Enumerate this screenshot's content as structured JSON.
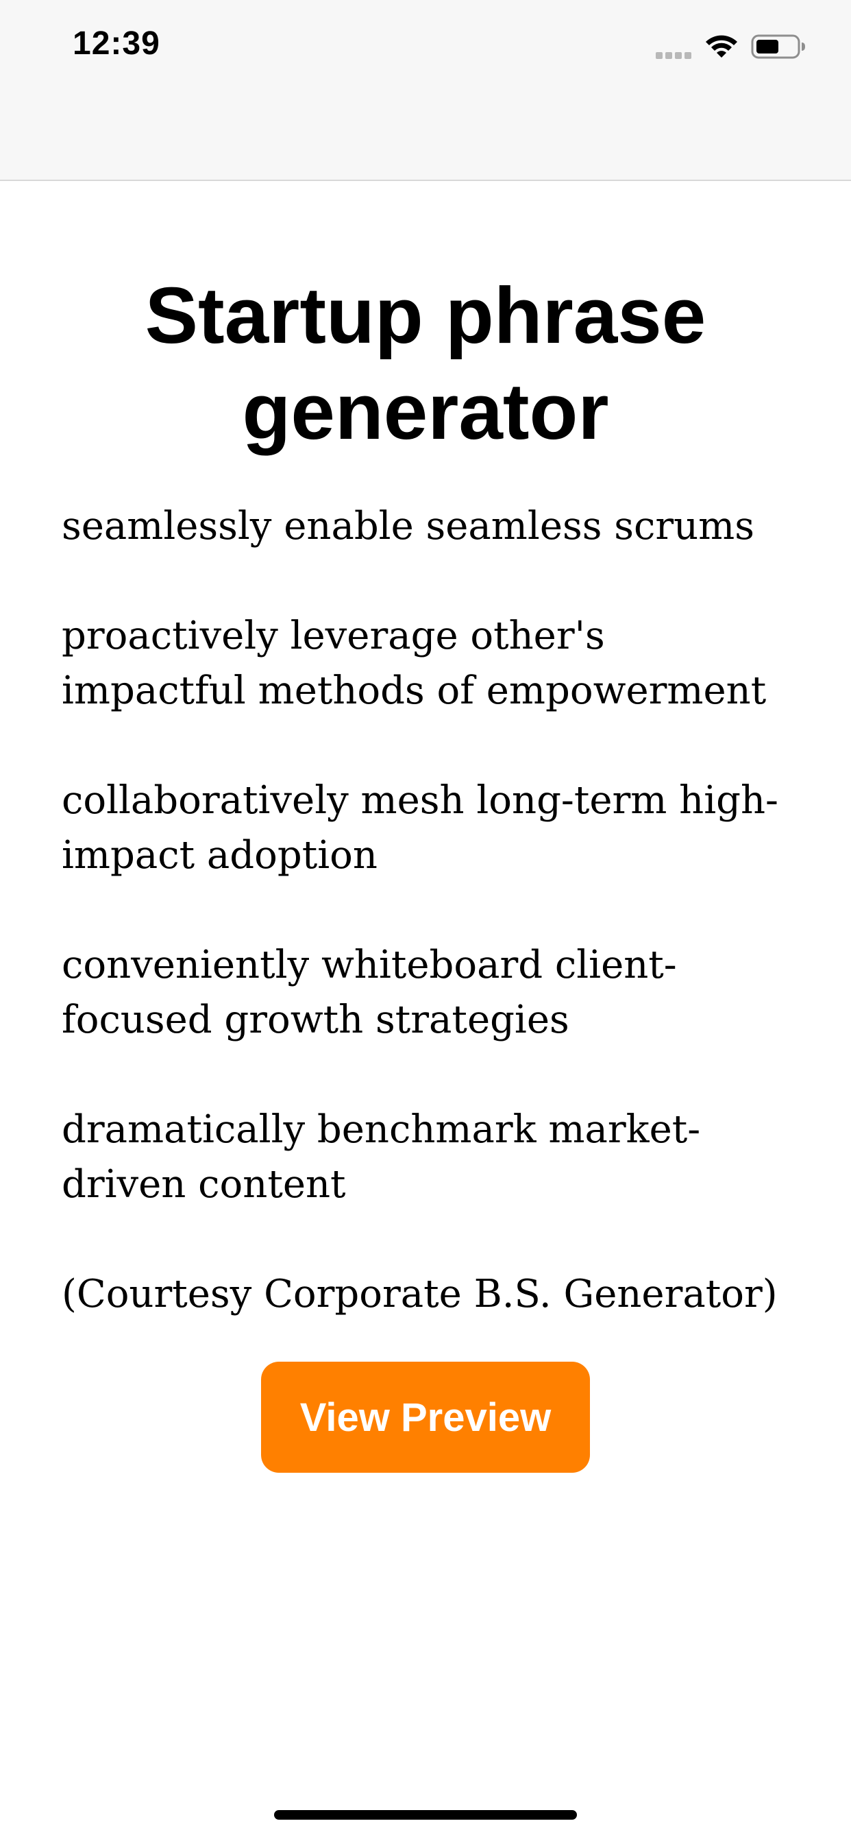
{
  "status_bar": {
    "time": "12:39",
    "icons": [
      "signal-icon",
      "wifi-icon",
      "battery-icon"
    ]
  },
  "main": {
    "title": "Startup phrase generator",
    "phrases": [
      "seamlessly enable seamless scrums",
      "proactively leverage other's impactful methods of empowerment",
      "collaboratively mesh long-term high-impact adoption",
      "conveniently whiteboard client-focused growth strategies",
      "dramatically benchmark market-driven content"
    ],
    "courtesy": "(Courtesy Corporate B.S. Generator)",
    "button_label": "View Preview"
  },
  "colors": {
    "accent": "#ff8000",
    "status_bar_bg": "#f7f7f7",
    "text": "#000000"
  }
}
